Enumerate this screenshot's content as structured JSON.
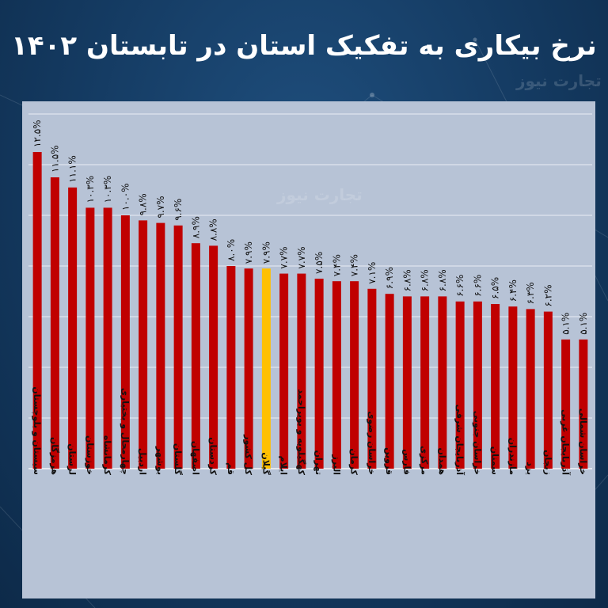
{
  "title": "نرخ بیکاری به تفکیک استان در تابستان ۱۴۰۲",
  "watermark": "تجارت نیوز",
  "colors": {
    "bar": "#c00000",
    "highlight": "#ffc000"
  },
  "chart_data": {
    "type": "bar",
    "title": "نرخ بیکاری به تفکیک استان در تابستان ۱۴۰۲",
    "xlabel": "",
    "ylabel": "",
    "ylim": [
      0,
      14
    ],
    "grid": true,
    "highlight_index": 13,
    "categories": [
      "سیستان و بلوچستان",
      "هرمزگان",
      "لرستان",
      "خوزستان",
      "کرمانشاه",
      "چهارمحال و بختیاری",
      "اردبیل",
      "بوشهر",
      "گلستان",
      "اصفهان",
      "کردستان",
      "قم",
      "کل کشور",
      "گیلان",
      "ایلام",
      "کهگیلویه و بویراحمد",
      "تهران",
      "البرز",
      "کرمان",
      "خراسان رضوی",
      "قزوین",
      "فارس",
      "مرکزی",
      "همدان",
      "آذربایجان شرقی",
      "خراسان جنوبی",
      "سمنان",
      "مازندران",
      "یزد",
      "زنجان",
      "آذربایجان غربی",
      "خراسان شمالی"
    ],
    "values": [
      12.5,
      11.5,
      11.1,
      10.3,
      10.3,
      10.0,
      9.8,
      9.7,
      9.6,
      8.9,
      8.8,
      8.0,
      7.9,
      7.9,
      7.7,
      7.7,
      7.5,
      7.4,
      7.4,
      7.1,
      6.9,
      6.8,
      6.8,
      6.8,
      6.6,
      6.6,
      6.5,
      6.4,
      6.3,
      6.2,
      5.1,
      5.1
    ],
    "data_labels": [
      "۱۲.۵%",
      "۱۱.۵%",
      "۱۱.۱%",
      "۱۰.۳%",
      "۱۰.۳%",
      "۱۰.۰%",
      "۹.۸%",
      "۹.۷%",
      "۹.۶%",
      "۸.۹%",
      "۸.۸%",
      "۸.۰%",
      "۷.۹%",
      "۷.۹%",
      "۷.۷%",
      "۷.۷%",
      "۷.۵%",
      "۷.۴%",
      "۷.۴%",
      "۷.۱%",
      "۶.۹%",
      "۶.۸%",
      "۶.۸%",
      "۶.۸%",
      "۶.۶%",
      "۶.۶%",
      "۶.۵%",
      "۶.۴%",
      "۶.۳%",
      "۶.۲%",
      "۵.۱%",
      "۵.۱%"
    ]
  }
}
